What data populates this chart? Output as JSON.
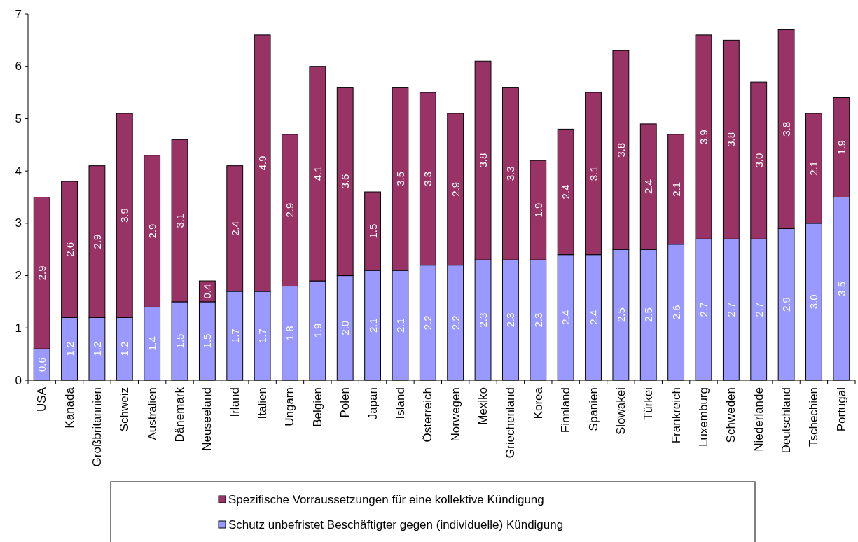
{
  "chart_data": {
    "type": "bar",
    "stacked": true,
    "legend": "bottom",
    "grid": false,
    "categories": [
      "USA",
      "Kanada",
      "Großbritannien",
      "Schweiz",
      "Australien",
      "Dänemark",
      "Neuseeland",
      "Irland",
      "Italien",
      "Ungarn",
      "Belgien",
      "Polen",
      "Japan",
      "Island",
      "Österreich",
      "Norwegen",
      "Mexiko",
      "Griechenland",
      "Korea",
      "Finnland",
      "Spanien",
      "Slowakei",
      "Türkei",
      "Frankreich",
      "Luxemburg",
      "Schweden",
      "Niederlande",
      "Deutschland",
      "Tschechien",
      "Portugal"
    ],
    "ylim": [
      0,
      7
    ],
    "yticks": [
      0,
      1,
      2,
      3,
      4,
      5,
      6,
      7
    ],
    "series": [
      {
        "name": "Schutz unbefristet Beschäftigter gegen (individuelle) Kündigung",
        "color": "#9999ff",
        "value_labels": [
          "0.6",
          "1.2",
          "1.2",
          "1.2",
          "1.4",
          "1.5",
          "1.5",
          "1.7",
          "1.7",
          "1.8",
          "1.9",
          "2.0",
          "2.1",
          "2.1",
          "2.2",
          "2.2",
          "2.3",
          "2.3",
          "2.3",
          "2.4",
          "2.4",
          "2.5",
          "2.5",
          "2.6",
          "2.7",
          "2.7",
          "2.7",
          "2.9",
          "3.0",
          "3.5"
        ],
        "values": [
          0.6,
          1.2,
          1.2,
          1.2,
          1.4,
          1.5,
          1.5,
          1.7,
          1.7,
          1.8,
          1.9,
          2.0,
          2.1,
          2.1,
          2.2,
          2.2,
          2.3,
          2.3,
          2.3,
          2.4,
          2.4,
          2.5,
          2.5,
          2.6,
          2.7,
          2.7,
          2.7,
          2.9,
          3.0,
          3.5
        ]
      },
      {
        "name": "Spezifische Vorraussetzungen für eine kollektive Kündigung",
        "color": "#993366",
        "value_labels": [
          "2.9",
          "2.6",
          "2.9",
          "3.9",
          "2.9",
          "3.1",
          "0.4",
          "2.4",
          "4.9",
          "2.9",
          "4.1",
          "3.6",
          "1.5",
          "3.5",
          "3.3",
          "2.9",
          "3.8",
          "3.3",
          "1.9",
          "2.4",
          "3.1",
          "3.8",
          "2.4",
          "2.1",
          "3.9",
          "3.8",
          "3.0",
          "3.8",
          "2.1",
          "1.9"
        ],
        "values": [
          2.9,
          2.6,
          2.9,
          3.9,
          2.9,
          3.1,
          0.4,
          2.4,
          4.9,
          2.9,
          4.1,
          3.6,
          1.5,
          3.5,
          3.3,
          2.9,
          3.8,
          3.3,
          1.9,
          2.4,
          3.1,
          3.8,
          2.4,
          2.1,
          3.9,
          3.8,
          3.0,
          3.8,
          2.1,
          1.9
        ]
      }
    ]
  }
}
